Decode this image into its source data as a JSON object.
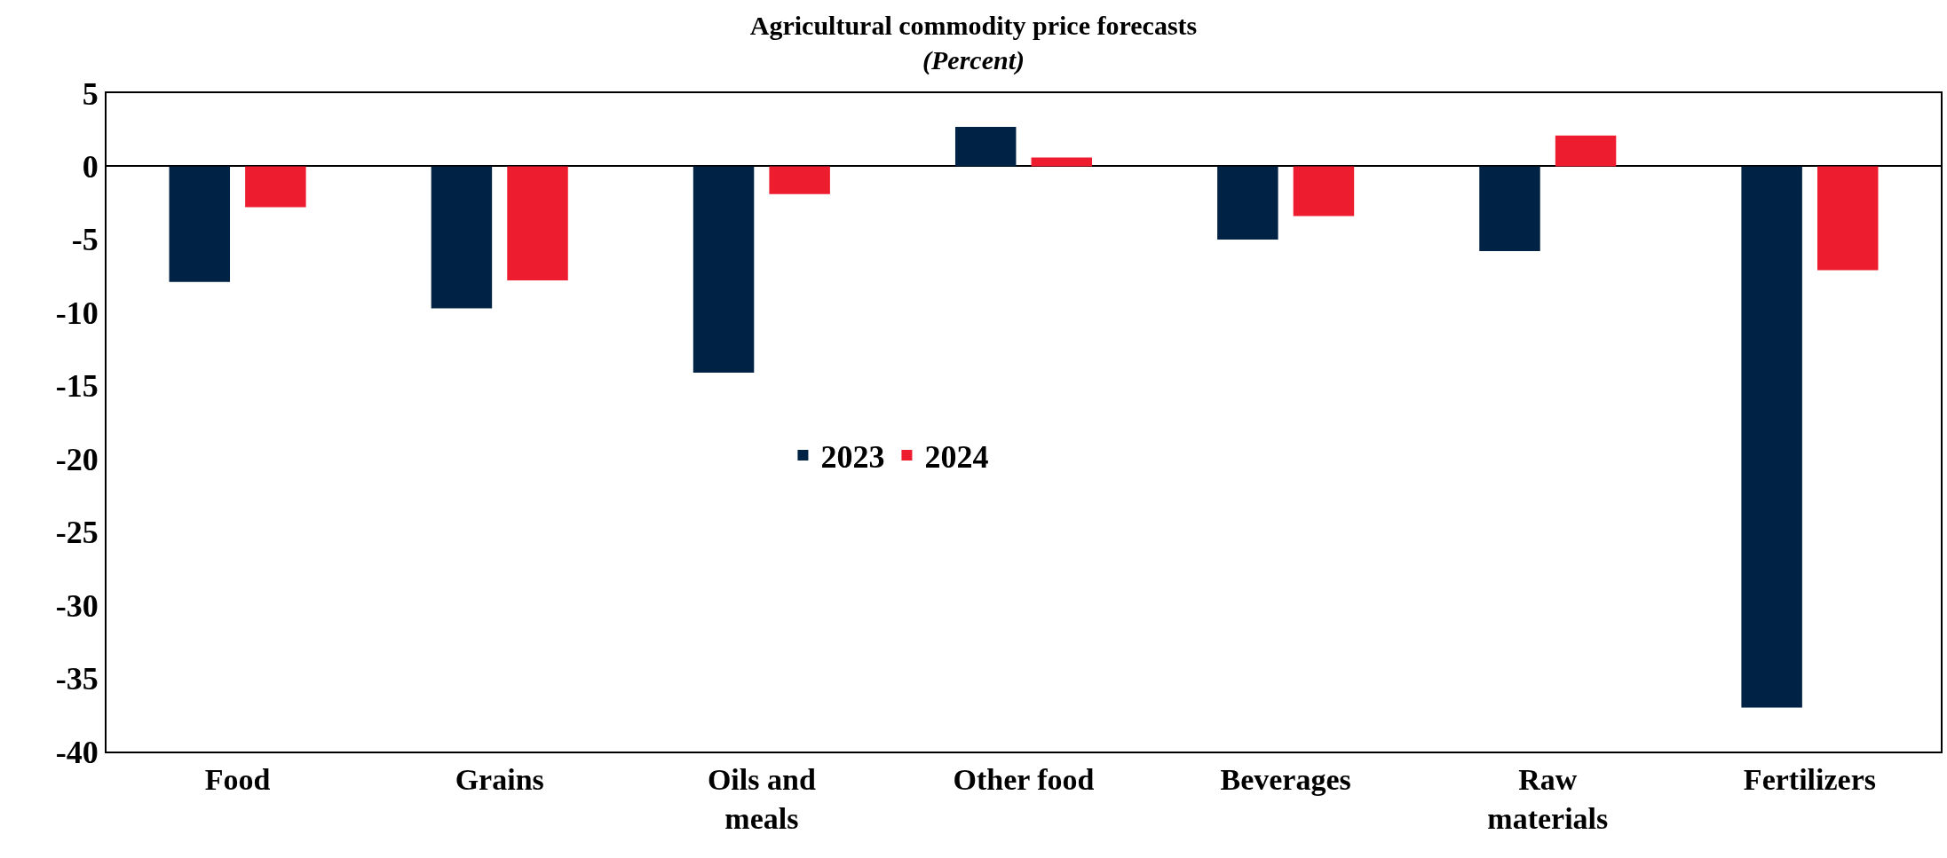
{
  "chart_data": {
    "type": "bar",
    "title": "Agricultural commodity price forecasts",
    "subtitle": "(Percent)",
    "categories": [
      "Food",
      "Grains",
      "Oils and meals",
      "Other food",
      "Beverages",
      "Raw materials",
      "Fertilizers"
    ],
    "series": [
      {
        "name": "2023",
        "color": "#002244",
        "values": [
          -7.9,
          -9.7,
          -14.1,
          2.7,
          -5.0,
          -5.8,
          -37.0
        ]
      },
      {
        "name": "2024",
        "color": "#ed1c2e",
        "values": [
          -2.8,
          -7.8,
          -1.9,
          0.6,
          -3.4,
          2.1,
          -7.1
        ]
      }
    ],
    "ylim": [
      -40,
      5
    ],
    "yticks": [
      -40,
      -35,
      -30,
      -25,
      -20,
      -15,
      -10,
      -5,
      0,
      5
    ],
    "legend": "center"
  }
}
